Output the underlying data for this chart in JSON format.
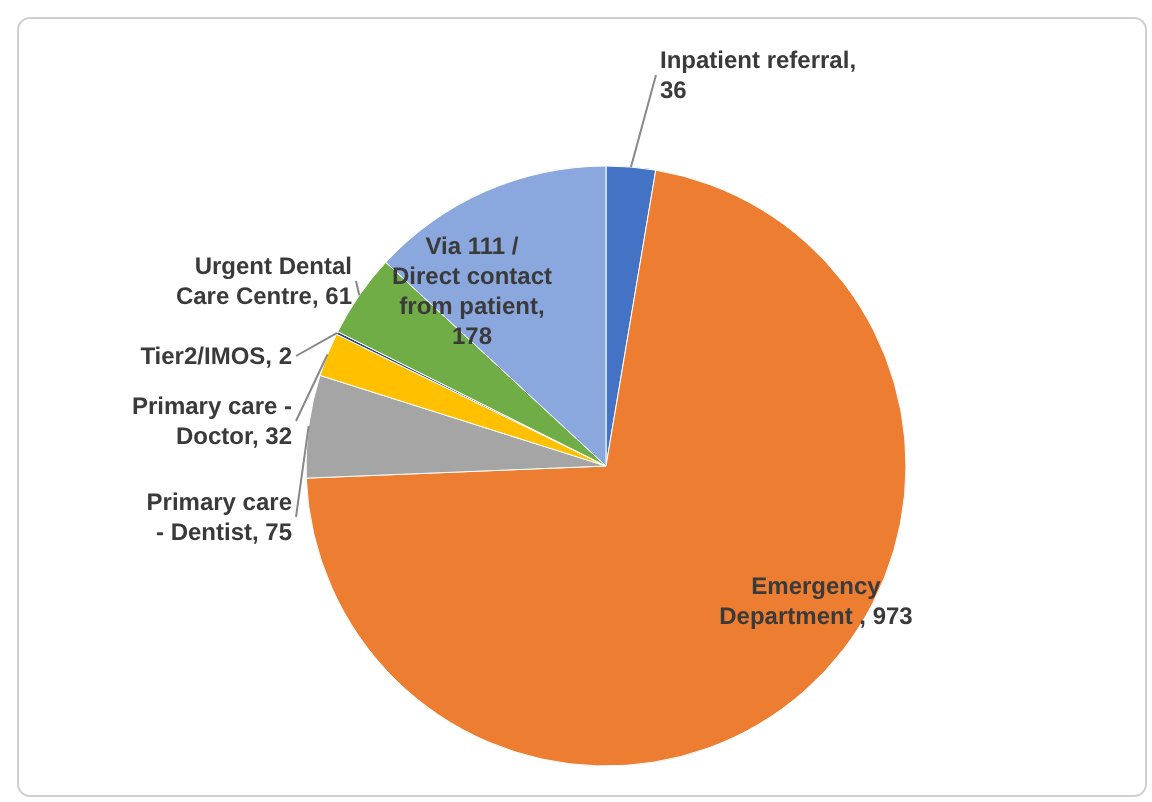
{
  "chart_data": {
    "type": "pie",
    "categories": [
      "Inpatient referral",
      "Emergency Department ",
      "Primary care - Dentist",
      "Primary care - Doctor",
      "Tier2/IMOS",
      "Urgent Dental Care Centre",
      "Via 111 / Direct contact from patient"
    ],
    "values": [
      36,
      973,
      75,
      32,
      2,
      61,
      178
    ],
    "value_labels": [
      ", 36",
      ", 973",
      ", 75",
      ", 32",
      ", 2",
      ", 61",
      ", 178"
    ],
    "colors": [
      "#4472c4",
      "#ed7d31",
      "#a5a5a5",
      "#ffc000",
      "#264478",
      "#70ad47",
      "#8aa8de"
    ]
  }
}
